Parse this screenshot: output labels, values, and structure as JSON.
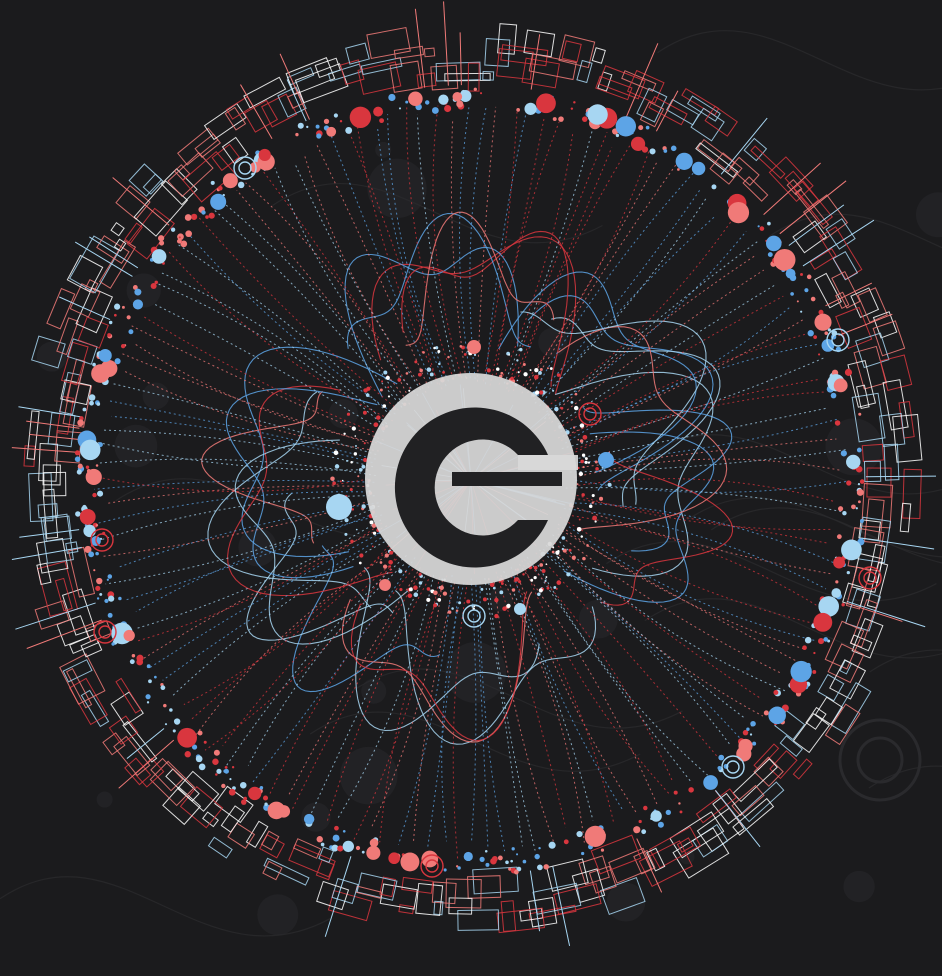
{
  "artwork": {
    "colors": {
      "background": "#1b1b1d",
      "background_pattern": "#2a2a2d",
      "red": "#d9363e",
      "salmon": "#f07a78",
      "blue": "#5da4e6",
      "light_blue": "#a7d6f2",
      "white": "#ffffff",
      "emblem": "#d8d8d8"
    },
    "emblem": {
      "name": "letter-e-emblem",
      "glyph": "e"
    },
    "icons": [
      "letter-e-emblem"
    ]
  }
}
